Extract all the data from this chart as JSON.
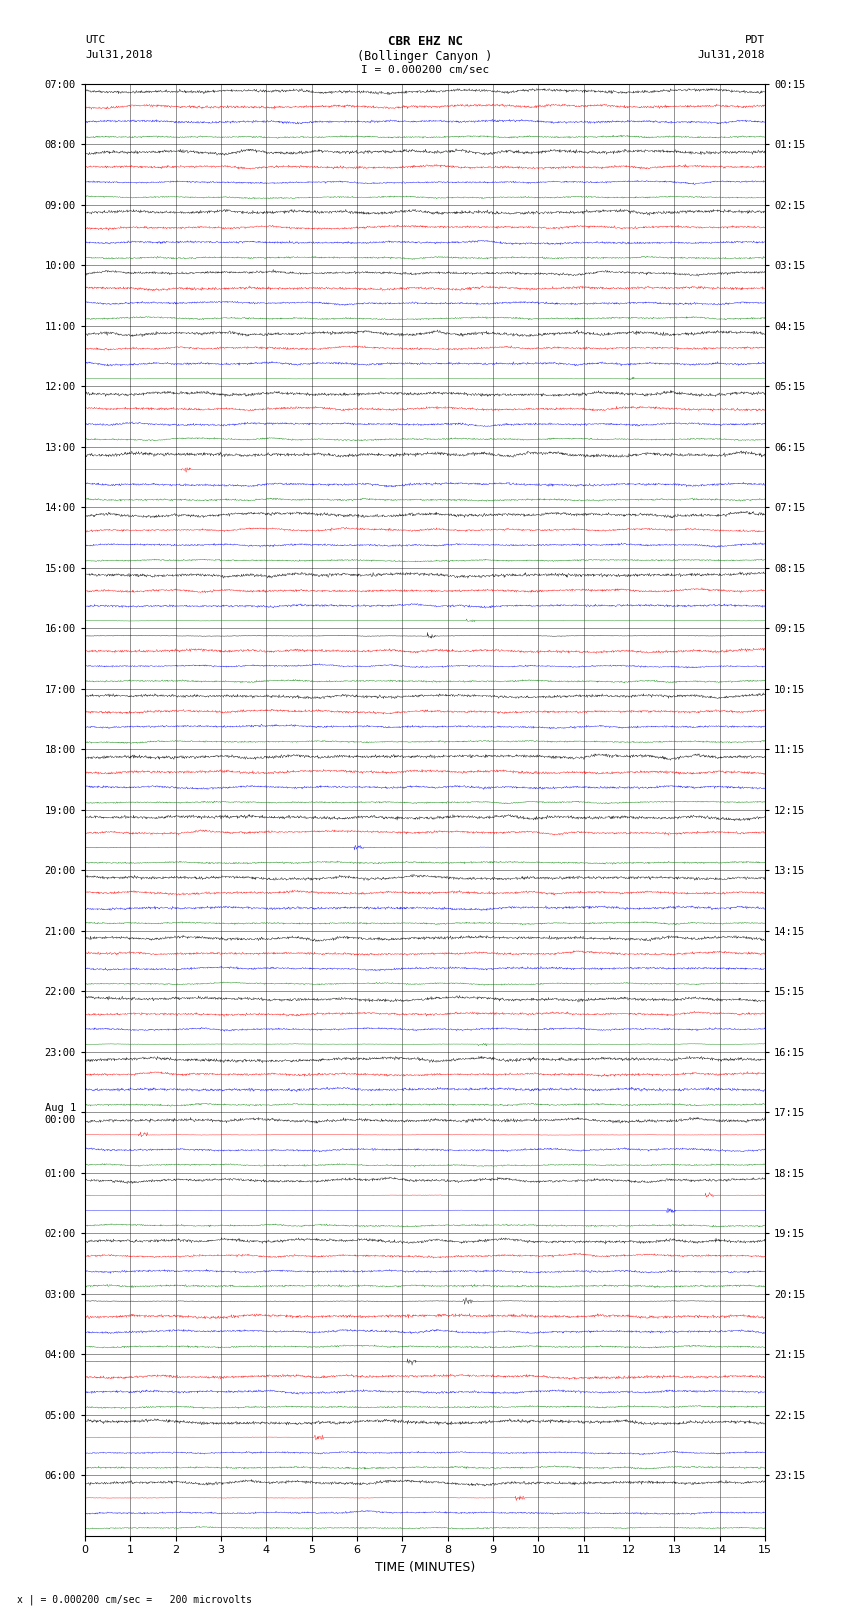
{
  "title_line1": "CBR EHZ NC",
  "title_line2": "(Bollinger Canyon )",
  "scale_text": "I = 0.000200 cm/sec",
  "left_header": "UTC",
  "right_header": "PDT",
  "left_date": "Jul31,2018",
  "right_date": "Jul31,2018",
  "bottom_label": "TIME (MINUTES)",
  "bottom_note": "x | = 0.000200 cm/sec =   200 microvolts",
  "xlabel_ticks": [
    0,
    1,
    2,
    3,
    4,
    5,
    6,
    7,
    8,
    9,
    10,
    11,
    12,
    13,
    14,
    15
  ],
  "utc_labels": [
    "07:00",
    "08:00",
    "09:00",
    "10:00",
    "11:00",
    "12:00",
    "13:00",
    "14:00",
    "15:00",
    "16:00",
    "17:00",
    "18:00",
    "19:00",
    "20:00",
    "21:00",
    "22:00",
    "23:00",
    "Aug 1\n00:00",
    "01:00",
    "02:00",
    "03:00",
    "04:00",
    "05:00",
    "06:00"
  ],
  "pdt_labels": [
    "00:15",
    "01:15",
    "02:15",
    "03:15",
    "04:15",
    "05:15",
    "06:15",
    "07:15",
    "08:15",
    "09:15",
    "10:15",
    "11:15",
    "12:15",
    "13:15",
    "14:15",
    "15:15",
    "16:15",
    "17:15",
    "18:15",
    "19:15",
    "20:15",
    "21:15",
    "22:15",
    "23:15"
  ],
  "trace_colors": [
    "black",
    "red",
    "blue",
    "green"
  ],
  "n_blocks": 24,
  "n_traces_per_block": 4,
  "x_min": 0,
  "x_max": 15,
  "background_color": "white",
  "figsize": [
    8.5,
    16.13
  ],
  "dpi": 100,
  "noise_amplitude": [
    0.1,
    0.08,
    0.07,
    0.05
  ]
}
